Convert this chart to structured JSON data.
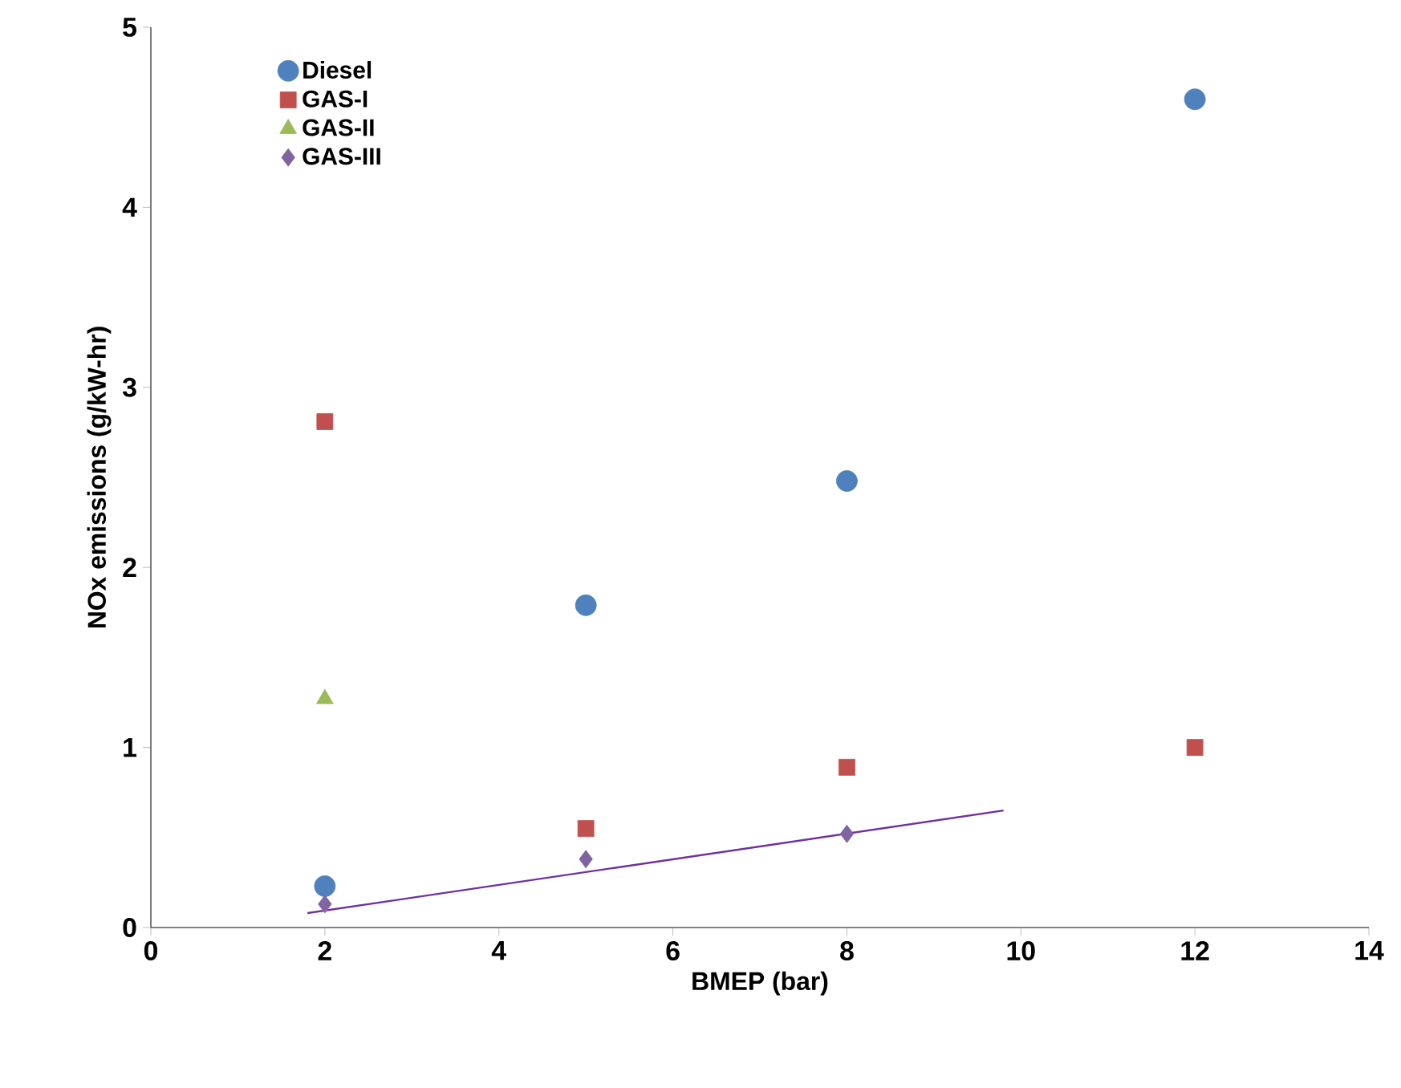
{
  "chart_data": {
    "type": "scatter",
    "xlabel": "BMEP (bar)",
    "ylabel": "NOx emissions (g/kW-hr)",
    "xlim": [
      0,
      14
    ],
    "ylim": [
      0,
      5
    ],
    "xticks": [
      0,
      2,
      4,
      6,
      8,
      10,
      12,
      14
    ],
    "yticks": [
      0,
      1,
      2,
      3,
      4,
      5
    ],
    "legend": "top left",
    "grid": false,
    "series": [
      {
        "name": "Diesel",
        "color": "#4f81bd",
        "marker": "circle",
        "x": [
          2,
          5,
          8,
          12
        ],
        "values": [
          0.23,
          1.79,
          2.48,
          4.6
        ]
      },
      {
        "name": "GAS-I",
        "color": "#c0504d",
        "marker": "square",
        "x": [
          2,
          5,
          8,
          12
        ],
        "values": [
          2.81,
          0.55,
          0.89,
          1.0
        ]
      },
      {
        "name": "GAS-II",
        "color": "#9bbb59",
        "marker": "triangle",
        "x": [
          2
        ],
        "values": [
          1.27
        ]
      },
      {
        "name": "GAS-III",
        "color": "#8064a2",
        "marker": "diamond",
        "x": [
          2,
          5,
          8
        ],
        "values": [
          0.13,
          0.38,
          0.52
        ]
      },
      {
        "type": "line",
        "color": "#7030a0",
        "marker": "none",
        "x": [
          1.8,
          9.8
        ],
        "values": [
          0.08,
          0.65
        ]
      }
    ]
  }
}
